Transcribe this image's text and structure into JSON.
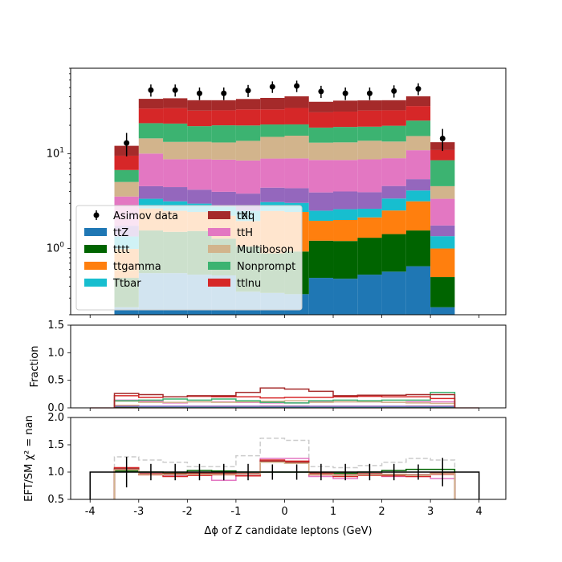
{
  "chart_data": {
    "type": "bar",
    "x_edges": [
      -4.0,
      -3.5,
      -3.0,
      -2.5,
      -2.0,
      -1.5,
      -1.0,
      -0.5,
      0.0,
      0.5,
      1.0,
      1.5,
      2.0,
      2.5,
      3.0,
      3.5,
      4.0
    ],
    "x_centers": [
      -3.25,
      -2.75,
      -2.25,
      -1.75,
      -1.25,
      -0.75,
      -0.25,
      0.25,
      0.75,
      1.25,
      1.75,
      2.25,
      2.75,
      3.25
    ],
    "xlabel": "Δϕ of Z candidate leptons (GeV)",
    "xticks": [
      "-4",
      "-3",
      "-2",
      "-1",
      "0",
      "1",
      "2",
      "3",
      "4"
    ],
    "xlim": [
      -4.4,
      4.55
    ],
    "main_panel": {
      "yscale": "log",
      "ylim": [
        0.2,
        80
      ],
      "yticks": [
        "10^0",
        "10^1"
      ],
      "ylabel": "",
      "series": [
        {
          "name": "ttZ",
          "color": "#1f77b4",
          "values": [
            0.24,
            0.55,
            0.55,
            0.53,
            0.52,
            0.35,
            0.34,
            0.33,
            0.49,
            0.48,
            0.53,
            0.57,
            0.65,
            0.24
          ]
        },
        {
          "name": "tttt",
          "color": "#006400",
          "values": [
            0.25,
            1.0,
            0.95,
            1.0,
            0.75,
            0.7,
            0.55,
            0.6,
            0.72,
            0.72,
            0.77,
            0.85,
            0.9,
            0.26
          ]
        },
        {
          "name": "ttgamma",
          "color": "#ff7f0e",
          "values": [
            0.5,
            1.1,
            1.0,
            0.9,
            0.95,
            0.9,
            1.6,
            1.5,
            0.75,
            0.8,
            0.83,
            1.1,
            1.6,
            0.5
          ]
        },
        {
          "name": "Ttbar",
          "color": "#17becf",
          "values": [
            0.35,
            0.7,
            0.65,
            0.55,
            0.55,
            0.55,
            0.6,
            0.6,
            0.55,
            0.6,
            0.5,
            0.85,
            0.95,
            0.35
          ]
        },
        {
          "name": "tXq",
          "color": "#9467bd",
          "values": [
            0.4,
            1.2,
            1.3,
            1.2,
            1.2,
            1.3,
            1.3,
            1.3,
            1.4,
            1.4,
            1.3,
            1.2,
            1.3,
            0.4
          ]
        },
        {
          "name": "ttH",
          "color": "#e377c2",
          "values": [
            1.8,
            5.5,
            4.3,
            4.6,
            4.7,
            4.7,
            4.5,
            4.6,
            4.7,
            4.6,
            4.8,
            4.4,
            5.5,
            1.6
          ]
        },
        {
          "name": "Multiboson",
          "color": "#d2b48c",
          "values": [
            1.5,
            4.5,
            4.6,
            4.6,
            4.5,
            5.2,
            6.2,
            6.6,
            4.5,
            4.6,
            5.0,
            4.5,
            4.5,
            1.2
          ]
        },
        {
          "name": "Nonprompt",
          "color": "#3cb371",
          "values": [
            1.7,
            6.5,
            7.5,
            6.2,
            6.8,
            6.2,
            5.3,
            4.9,
            5.8,
            6.0,
            5.6,
            6.3,
            7.0,
            4.0
          ]
        },
        {
          "name": "ttlnu",
          "color": "#d62728",
          "values": [
            2.8,
            9.0,
            9.5,
            9.0,
            8.8,
            9.5,
            9.0,
            10.0,
            8.5,
            8.7,
            9.3,
            9.0,
            9.5,
            2.4
          ]
        },
        {
          "name": "ttll",
          "color": "#a52a2a",
          "values": [
            2.6,
            8.0,
            8.2,
            8.2,
            8.0,
            8.5,
            9.5,
            10.0,
            8.0,
            8.5,
            8.0,
            8.0,
            8.5,
            2.3
          ]
        }
      ],
      "data_points": {
        "name": "Asimov data",
        "y": [
          13.0,
          47.0,
          47.0,
          43.5,
          43.5,
          46.5,
          51.0,
          52.0,
          45.5,
          43.5,
          43.5,
          46.0,
          48.5,
          14.5
        ],
        "yerr": [
          3.6,
          6.9,
          6.9,
          6.6,
          6.6,
          6.8,
          7.1,
          7.2,
          6.7,
          6.6,
          6.6,
          6.8,
          7.0,
          3.8
        ]
      },
      "legend_location": "lower-left"
    },
    "fraction_panel": {
      "ylabel": "Fraction",
      "ylim": [
        0,
        1.5
      ],
      "yticks": [
        "0.0",
        "0.5",
        "1.0",
        "1.5"
      ],
      "series": [
        {
          "name": "ttZ",
          "color": "#1f77b4",
          "values": [
            0.02,
            0.01,
            0.01,
            0.01,
            0.01,
            0.01,
            0.01,
            0.01,
            0.01,
            0.01,
            0.01,
            0.01,
            0.01,
            0.02
          ]
        },
        {
          "name": "tttt",
          "color": "#006400",
          "values": [
            0.02,
            0.02,
            0.02,
            0.02,
            0.02,
            0.02,
            0.01,
            0.01,
            0.02,
            0.02,
            0.02,
            0.02,
            0.02,
            0.02
          ]
        },
        {
          "name": "ttgamma",
          "color": "#ff7f0e",
          "values": [
            0.04,
            0.02,
            0.02,
            0.02,
            0.02,
            0.02,
            0.03,
            0.03,
            0.02,
            0.02,
            0.02,
            0.02,
            0.03,
            0.03
          ]
        },
        {
          "name": "Ttbar",
          "color": "#17becf",
          "values": [
            0.03,
            0.02,
            0.02,
            0.01,
            0.01,
            0.01,
            0.01,
            0.01,
            0.01,
            0.01,
            0.01,
            0.02,
            0.02,
            0.02
          ]
        },
        {
          "name": "tXq",
          "color": "#9467bd",
          "values": [
            0.03,
            0.03,
            0.03,
            0.03,
            0.03,
            0.03,
            0.03,
            0.03,
            0.03,
            0.03,
            0.03,
            0.03,
            0.03,
            0.03
          ]
        },
        {
          "name": "ttH",
          "color": "#e377c2",
          "values": [
            0.14,
            0.12,
            0.09,
            0.11,
            0.11,
            0.1,
            0.09,
            0.09,
            0.11,
            0.11,
            0.11,
            0.1,
            0.11,
            0.11
          ]
        },
        {
          "name": "Multiboson",
          "color": "#d2b48c",
          "values": [
            0.12,
            0.1,
            0.1,
            0.11,
            0.1,
            0.11,
            0.12,
            0.13,
            0.1,
            0.11,
            0.11,
            0.1,
            0.09,
            0.08
          ]
        },
        {
          "name": "Nonprompt",
          "color": "#3cb371",
          "values": [
            0.13,
            0.14,
            0.16,
            0.14,
            0.16,
            0.13,
            0.1,
            0.09,
            0.13,
            0.14,
            0.13,
            0.14,
            0.14,
            0.28
          ]
        },
        {
          "name": "ttlnu",
          "color": "#d62728",
          "values": [
            0.22,
            0.19,
            0.2,
            0.21,
            0.2,
            0.2,
            0.18,
            0.19,
            0.19,
            0.2,
            0.21,
            0.2,
            0.2,
            0.17
          ]
        },
        {
          "name": "ttll",
          "color": "#a52a2a",
          "values": [
            0.26,
            0.24,
            0.2,
            0.22,
            0.22,
            0.28,
            0.36,
            0.34,
            0.3,
            0.22,
            0.23,
            0.23,
            0.24,
            0.24
          ]
        }
      ]
    },
    "ratio_panel": {
      "ylabel": "EFT/SM χ² = nan",
      "ylim": [
        0.5,
        2.0
      ],
      "yticks": [
        "0.5",
        "1.0",
        "1.5",
        "2.0"
      ],
      "reference_line": {
        "y": 1.0,
        "x_range": [
          -4,
          4
        ]
      },
      "data_points": {
        "y": [
          1.0,
          1.0,
          1.0,
          1.0,
          1.0,
          1.0,
          1.0,
          1.0,
          1.0,
          1.0,
          1.0,
          1.0,
          1.0,
          1.0
        ],
        "yerr": [
          0.28,
          0.15,
          0.15,
          0.15,
          0.15,
          0.15,
          0.14,
          0.14,
          0.15,
          0.15,
          0.15,
          0.15,
          0.14,
          0.26
        ]
      },
      "series": [
        {
          "color": "#cccccc",
          "dashed": true,
          "values": [
            1.28,
            1.22,
            1.18,
            1.1,
            1.1,
            1.3,
            1.62,
            1.58,
            1.1,
            1.08,
            1.12,
            1.18,
            1.25,
            1.22
          ]
        },
        {
          "color": "#e377c2",
          "dashed": false,
          "values": [
            1.05,
            0.98,
            0.93,
            0.95,
            0.85,
            0.95,
            1.25,
            1.25,
            0.92,
            0.88,
            0.95,
            0.92,
            0.92,
            0.88
          ]
        },
        {
          "color": "#006400",
          "dashed": false,
          "values": [
            1.02,
            1.0,
            0.98,
            1.03,
            1.02,
            1.0,
            1.0,
            1.0,
            0.98,
            0.98,
            1.0,
            1.03,
            1.05,
            1.05
          ]
        },
        {
          "color": "#d62728",
          "dashed": false,
          "values": [
            1.08,
            0.95,
            0.92,
            0.94,
            0.95,
            0.93,
            1.22,
            1.2,
            0.95,
            0.92,
            0.94,
            0.93,
            0.92,
            0.96
          ]
        },
        {
          "color": "#a52a2a",
          "dashed": false,
          "values": [
            1.06,
            0.97,
            0.97,
            0.98,
            0.98,
            0.97,
            1.2,
            1.18,
            0.98,
            0.95,
            0.97,
            0.96,
            0.95,
            0.98
          ]
        },
        {
          "color": "#d2b48c",
          "dashed": false,
          "values": [
            1.04,
            0.96,
            0.95,
            0.96,
            0.96,
            0.96,
            1.18,
            1.16,
            0.96,
            0.94,
            0.95,
            0.95,
            0.94,
            0.97
          ]
        }
      ]
    }
  }
}
